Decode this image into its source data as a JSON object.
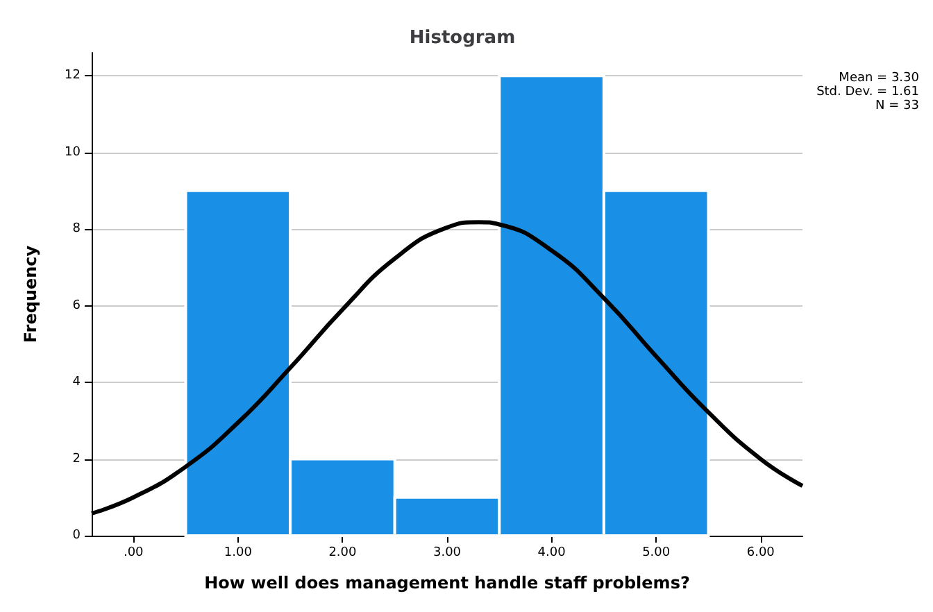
{
  "chart_data": {
    "type": "histogram",
    "title": "Histogram",
    "xlabel": "How well does management handle staff problems?",
    "ylabel": "Frequency",
    "bins": [
      0.5,
      1.5,
      2.5,
      3.5,
      4.5,
      5.5
    ],
    "values": [
      9,
      2,
      1,
      12,
      9
    ],
    "color": "#1a8fe6",
    "series": [
      {
        "type": "line",
        "color": "#000000",
        "x": [
          -0.4,
          0,
          0.5,
          1,
          1.5,
          2,
          2.5,
          3,
          3.3,
          3.5,
          4,
          4.5,
          5,
          5.5,
          6,
          6.4
        ],
        "values": [
          0.58,
          1.0,
          1.8,
          2.95,
          4.38,
          5.9,
          7.23,
          8.04,
          8.18,
          8.12,
          7.44,
          6.2,
          4.68,
          3.22,
          2.0,
          1.3
        ]
      }
    ],
    "xlim": [
      -0.4,
      6.4
    ],
    "xticks": [
      {
        "value": 0,
        "label": ".00"
      },
      {
        "value": 1,
        "label": "1.00"
      },
      {
        "value": 2,
        "label": "2.00"
      },
      {
        "value": 3,
        "label": "3.00"
      },
      {
        "value": 4,
        "label": "4.00"
      },
      {
        "value": 5,
        "label": "5.00"
      },
      {
        "value": 6,
        "label": "6.00"
      }
    ],
    "ylim": [
      0,
      12.6
    ],
    "yticks": [
      0,
      2,
      4,
      6,
      8,
      10,
      12
    ],
    "grid": "y",
    "marker": "none",
    "line_style": "solid",
    "annotations": [
      "Mean = 3.30",
      "Std. Dev. = 1.61",
      "N = 33"
    ]
  }
}
